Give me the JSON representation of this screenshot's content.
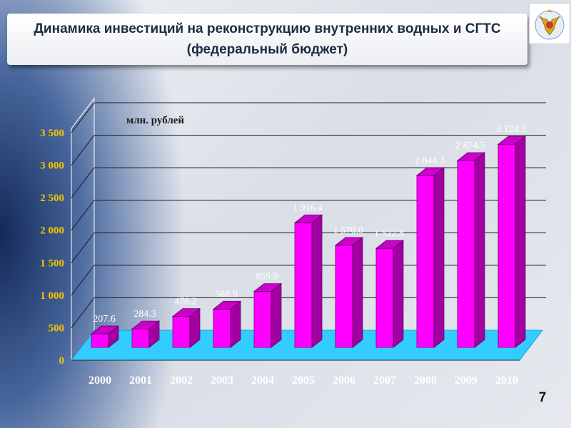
{
  "slide": {
    "title": "Динамика инвестиций на реконструкцию внутренних водных и СГТС (федеральный бюджет)",
    "page_number": "7"
  },
  "colors": {
    "bar_front": "#ff00ff",
    "bar_top": "#cc00cc",
    "bar_side": "#a300a3",
    "floor": "#33ccff",
    "tick_labels": "#f5c400",
    "category_labels": "#ffffff",
    "data_labels": "#ffffff"
  },
  "chart_data": {
    "type": "bar",
    "title": "",
    "unit_label": "млн. рублей",
    "categories": [
      "2000",
      "2001",
      "2002",
      "2003",
      "2004",
      "2005",
      "2006",
      "2007",
      "2008",
      "2009",
      "2010"
    ],
    "values": [
      207.6,
      284.3,
      476.2,
      588.9,
      859.9,
      1916.4,
      1570.0,
      1522.8,
      2644.3,
      2874.5,
      3124.5
    ],
    "data_labels": [
      "207.6",
      "284.3",
      "476.2",
      "588.9",
      "859.9",
      "1 916.4",
      "1 570.0",
      "1 522.8",
      "2 644.3",
      "2 874.5",
      "3 124.5"
    ],
    "ylim": [
      0,
      3500
    ],
    "yticks": [
      0,
      500,
      1000,
      1500,
      2000,
      2500,
      3000,
      3500
    ],
    "ytick_labels": [
      "0",
      "500",
      "1 000",
      "1 500",
      "2 000",
      "2 500",
      "3 000",
      "3 500"
    ],
    "grid": true,
    "legend": "none",
    "style": "3d"
  }
}
